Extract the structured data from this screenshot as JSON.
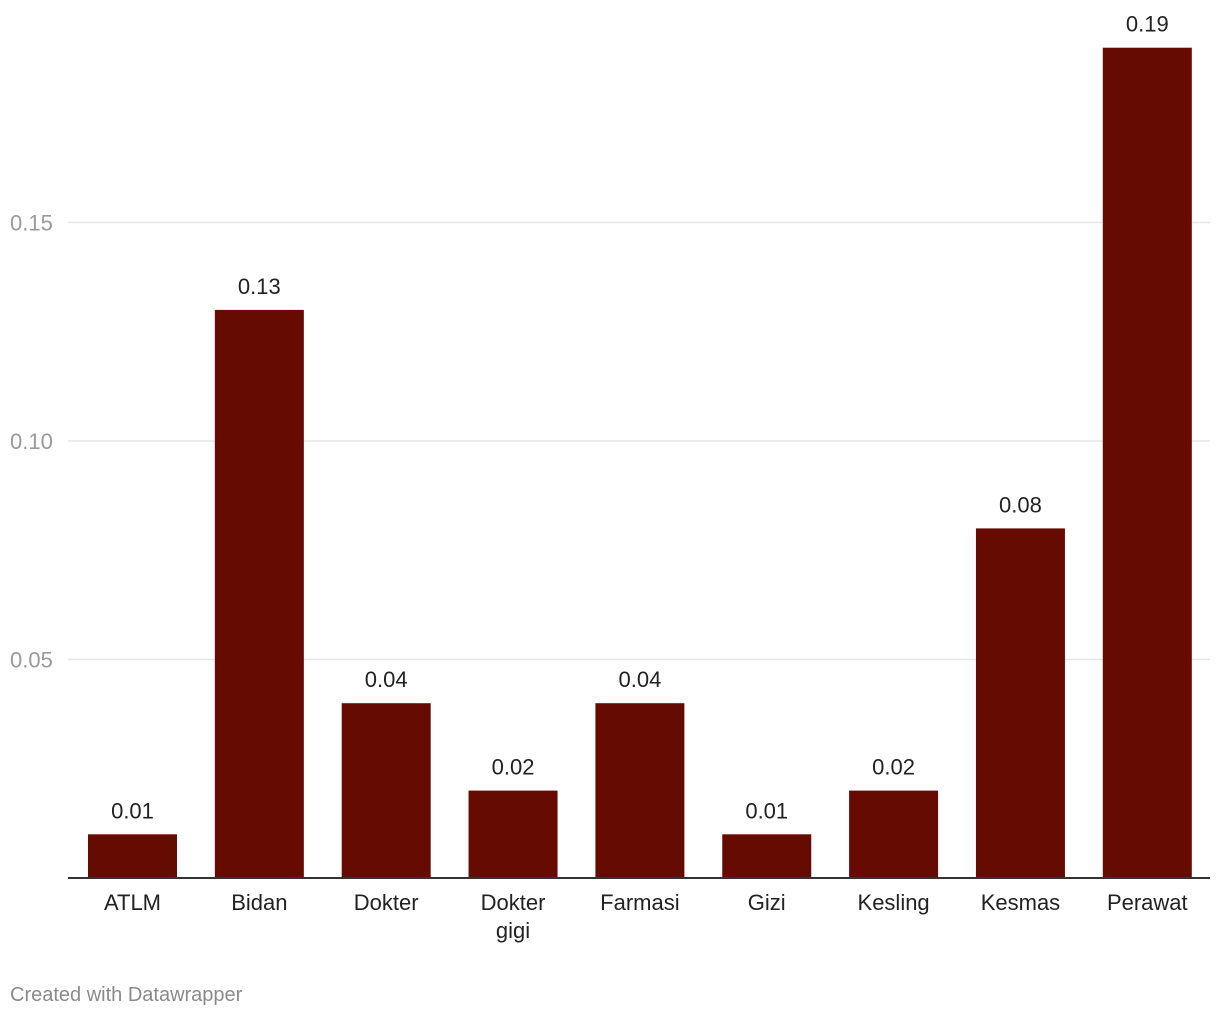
{
  "chart_data": {
    "type": "bar",
    "categories": [
      "ATLM",
      "Bidan",
      "Dokter",
      "Dokter gigi",
      "Farmasi",
      "Gizi",
      "Kesling",
      "Kesmas",
      "Perawat"
    ],
    "category_lines": [
      [
        "ATLM"
      ],
      [
        "Bidan"
      ],
      [
        "Dokter"
      ],
      [
        "Dokter",
        "gigi"
      ],
      [
        "Farmasi"
      ],
      [
        "Gizi"
      ],
      [
        "Kesling"
      ],
      [
        "Kesmas"
      ],
      [
        "Perawat"
      ]
    ],
    "values": [
      0.01,
      0.13,
      0.04,
      0.02,
      0.04,
      0.01,
      0.02,
      0.08,
      0.19
    ],
    "value_labels": [
      "0.01",
      "0.13",
      "0.04",
      "0.02",
      "0.04",
      "0.01",
      "0.02",
      "0.08",
      "0.19"
    ],
    "yticks": [
      0.05,
      0.1,
      0.15
    ],
    "ytick_labels": [
      "0.05",
      "0.10",
      "0.15"
    ],
    "ylim": [
      0,
      0.2
    ],
    "title": "",
    "xlabel": "",
    "ylabel": "",
    "grid": true,
    "legend": "none",
    "colors": {
      "bar": "#660b02",
      "grid": "#e6e6e6",
      "baseline": "#333333",
      "tick_text": "#9a9a9a",
      "label_text": "#222222"
    }
  },
  "footer": {
    "credit": "Created with Datawrapper"
  }
}
